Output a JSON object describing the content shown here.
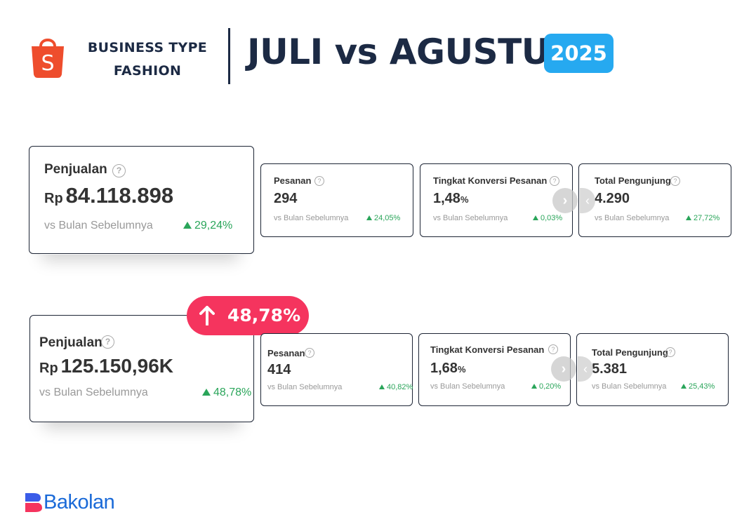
{
  "header": {
    "business_type_line1": "BUSINESS TYPE",
    "business_type_line2": "FASHION",
    "title": "JULI vs AGUSTUS",
    "year": "2025",
    "logo_icon": "shopee-bag-icon",
    "logo_letter": "S"
  },
  "juli": {
    "sales": {
      "label": "Penjualan",
      "currency": "Rp",
      "value": "84.118.898",
      "compare": "vs Bulan Sebelumnya",
      "change": "29,24%"
    },
    "orders": {
      "label": "Pesanan",
      "value": "294",
      "compare": "vs Bulan Sebelumnya",
      "change": "24,05%"
    },
    "conversion": {
      "label": "Tingkat Konversi Pesanan",
      "value": "1,48",
      "unit": "%",
      "compare": "vs Bulan Sebelumnya",
      "change": "0,03%"
    },
    "visitors": {
      "label": "Total Pengunjung",
      "value": "4.290",
      "compare": "vs Bulan Sebelumnya",
      "change": "27,72%"
    }
  },
  "agustus": {
    "sales": {
      "label": "Penjualan",
      "currency": "Rp",
      "value": "125.150,96K",
      "compare": "vs Bulan Sebelumnya",
      "change": "48,78%"
    },
    "orders": {
      "label": "Pesanan",
      "value": "414",
      "compare": "vs Bulan Sebelumnya",
      "change": "40,82%"
    },
    "conversion": {
      "label": "Tingkat Konversi Pesanan",
      "value": "1,68",
      "unit": "%",
      "compare": "vs Bulan Sebelumnya",
      "change": "0,20%"
    },
    "visitors": {
      "label": "Total Pengunjung",
      "value": "5.381",
      "compare": "vs Bulan Sebelumnya",
      "change": "25,43%"
    }
  },
  "growth_badge": {
    "value": "48,78%",
    "color": "#f5345e"
  },
  "brand": {
    "name": "Bakolan",
    "color": "#1a6ad8"
  },
  "colors": {
    "accent": "#26a9f0",
    "positive": "#2aa55a",
    "navy": "#1c2a44"
  }
}
